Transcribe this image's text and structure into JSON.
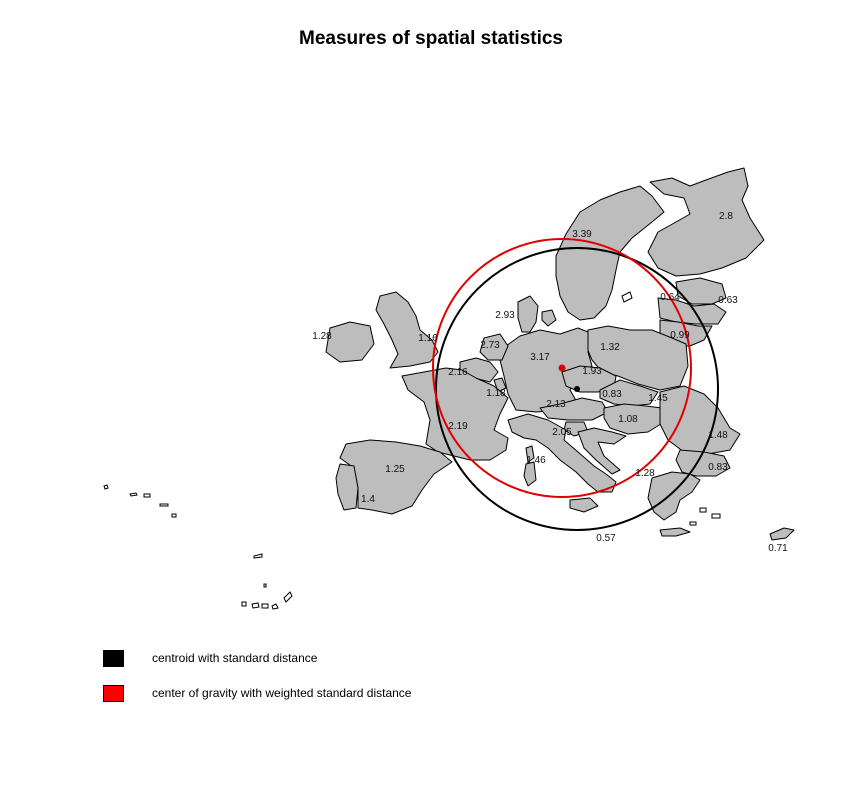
{
  "title": "Measures of spatial statistics",
  "colors": {
    "country_fill": "#bdbdbd",
    "border": "#000000",
    "centroid": "#000000",
    "weighted": "#e00000"
  },
  "value_labels": [
    {
      "id": "fi",
      "text": "2.8"
    },
    {
      "id": "se",
      "text": "3.39"
    },
    {
      "id": "dk",
      "text": "2.93"
    },
    {
      "id": "ie",
      "text": "1.28"
    },
    {
      "id": "uk",
      "text": "1.16"
    },
    {
      "id": "nl",
      "text": "2.73"
    },
    {
      "id": "be",
      "text": "2.16"
    },
    {
      "id": "de",
      "text": "3.17"
    },
    {
      "id": "pl",
      "text": "1.32"
    },
    {
      "id": "cz",
      "text": "1.93"
    },
    {
      "id": "lu",
      "text": "1.18"
    },
    {
      "id": "at",
      "text": "2.13"
    },
    {
      "id": "sk",
      "text": "0.83"
    },
    {
      "id": "hu",
      "text": "1.08"
    },
    {
      "id": "ro",
      "text": "1.48"
    },
    {
      "id": "md",
      "text": "1.45"
    },
    {
      "id": "fr",
      "text": "2.19"
    },
    {
      "id": "it",
      "text": "2.05"
    },
    {
      "id": "es",
      "text": "1.25"
    },
    {
      "id": "pt",
      "text": "1.4"
    },
    {
      "id": "co",
      "text": "1.46"
    },
    {
      "id": "gr",
      "text": "1.28"
    },
    {
      "id": "bg",
      "text": "0.83"
    },
    {
      "id": "mt",
      "text": "0.57"
    },
    {
      "id": "cy",
      "text": "0.71"
    },
    {
      "id": "lv",
      "text": "0.64"
    },
    {
      "id": "ee",
      "text": "0.63"
    },
    {
      "id": "lt",
      "text": "0.99"
    }
  ],
  "legend": [
    {
      "label": "centroid with standard distance",
      "color": "#000000"
    },
    {
      "label": "center of gravity with weighted standard distance",
      "color": "#ff0000"
    }
  ]
}
